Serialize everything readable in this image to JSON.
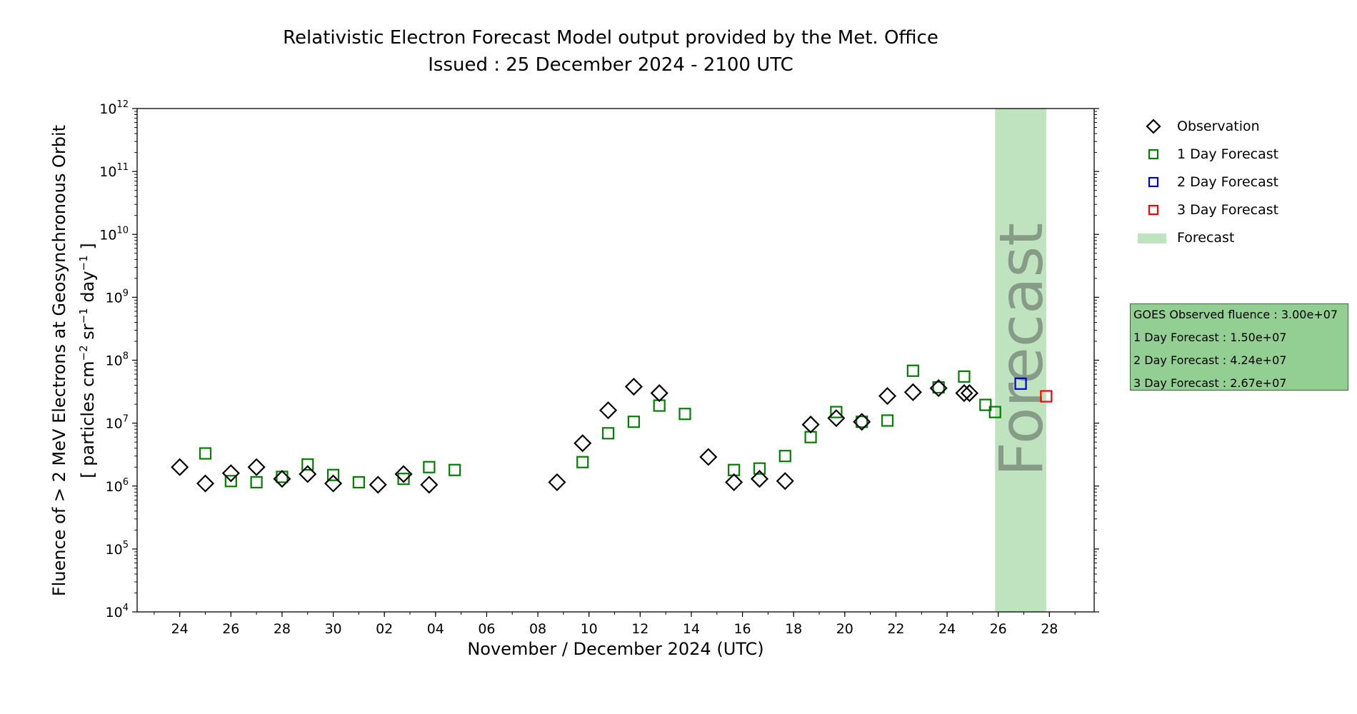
{
  "chart_data": {
    "type": "scatter",
    "title": "Relativistic Electron Forecast Model output provided by the Met. Office",
    "subtitle": "Issued : 25 December 2024 - 2100 UTC",
    "xlabel": "November / December 2024 (UTC)",
    "ylabel": "Fluence of > 2 MeV Electrons at Geosynchronous Orbit",
    "ylabel_units": "[ particles cm",
    "ylabel_units_parts": [
      "[ particles cm",
      "−2",
      " sr",
      "−1",
      " day",
      "−1",
      " ]"
    ],
    "x_range": [
      "2024-11-22T08:00",
      "2024-12-29T18:00"
    ],
    "ylim": [
      10000,
      1000000000000
    ],
    "yscale": "log",
    "x_ticks": [
      {
        "date": "2024-11-24",
        "label": "24"
      },
      {
        "date": "2024-11-26",
        "label": "26"
      },
      {
        "date": "2024-11-28",
        "label": "28"
      },
      {
        "date": "2024-11-30",
        "label": "30"
      },
      {
        "date": "2024-12-02",
        "label": "02"
      },
      {
        "date": "2024-12-04",
        "label": "04"
      },
      {
        "date": "2024-12-06",
        "label": "06"
      },
      {
        "date": "2024-12-08",
        "label": "08"
      },
      {
        "date": "2024-12-10",
        "label": "10"
      },
      {
        "date": "2024-12-12",
        "label": "12"
      },
      {
        "date": "2024-12-14",
        "label": "14"
      },
      {
        "date": "2024-12-16",
        "label": "16"
      },
      {
        "date": "2024-12-18",
        "label": "18"
      },
      {
        "date": "2024-12-20",
        "label": "20"
      },
      {
        "date": "2024-12-22",
        "label": "22"
      },
      {
        "date": "2024-12-24",
        "label": "24"
      },
      {
        "date": "2024-12-26",
        "label": "26"
      },
      {
        "date": "2024-12-28",
        "label": "28"
      }
    ],
    "y_ticks": [
      {
        "value": 10000,
        "base": "10",
        "exp": "4"
      },
      {
        "value": 100000,
        "base": "10",
        "exp": "5"
      },
      {
        "value": 1000000,
        "base": "10",
        "exp": "6"
      },
      {
        "value": 10000000,
        "base": "10",
        "exp": "7"
      },
      {
        "value": 100000000,
        "base": "10",
        "exp": "8"
      },
      {
        "value": 1000000000,
        "base": "10",
        "exp": "9"
      },
      {
        "value": 10000000000,
        "base": "10",
        "exp": "10"
      },
      {
        "value": 100000000000,
        "base": "10",
        "exp": "11"
      },
      {
        "value": 1000000000000,
        "base": "10",
        "exp": "12"
      }
    ],
    "forecast_region": {
      "start": "2024-12-25T21:00",
      "end": "2024-12-27T21:00",
      "label": "Forecast"
    },
    "series": [
      {
        "name": "Observation",
        "marker": "diamond",
        "color": "#000000",
        "points": [
          {
            "x": "2024-11-24T00:00",
            "y": 2000000
          },
          {
            "x": "2024-11-25T00:00",
            "y": 1100000
          },
          {
            "x": "2024-11-26T00:00",
            "y": 1600000
          },
          {
            "x": "2024-11-27T00:00",
            "y": 2000000
          },
          {
            "x": "2024-11-28T00:00",
            "y": 1300000
          },
          {
            "x": "2024-11-29T00:00",
            "y": 1550000
          },
          {
            "x": "2024-11-30T00:00",
            "y": 1100000
          },
          {
            "x": "2024-12-01T18:00",
            "y": 1050000
          },
          {
            "x": "2024-12-02T18:00",
            "y": 1550000
          },
          {
            "x": "2024-12-03T18:00",
            "y": 1050000
          },
          {
            "x": "2024-12-08T18:00",
            "y": 1150000
          },
          {
            "x": "2024-12-09T18:00",
            "y": 4800000
          },
          {
            "x": "2024-12-10T18:00",
            "y": 16000000
          },
          {
            "x": "2024-12-11T18:00",
            "y": 38000000
          },
          {
            "x": "2024-12-12T18:00",
            "y": 30000000
          },
          {
            "x": "2024-12-14T16:00",
            "y": 2900000
          },
          {
            "x": "2024-12-15T16:00",
            "y": 1150000
          },
          {
            "x": "2024-12-16T16:00",
            "y": 1300000
          },
          {
            "x": "2024-12-17T16:00",
            "y": 1200000
          },
          {
            "x": "2024-12-18T16:00",
            "y": 9500000
          },
          {
            "x": "2024-12-19T16:00",
            "y": 12000000
          },
          {
            "x": "2024-12-20T16:00",
            "y": 10500000
          },
          {
            "x": "2024-12-21T16:00",
            "y": 27000000
          },
          {
            "x": "2024-12-22T16:00",
            "y": 31000000
          },
          {
            "x": "2024-12-23T16:00",
            "y": 36000000
          },
          {
            "x": "2024-12-24T16:00",
            "y": 30000000
          },
          {
            "x": "2024-12-24T21:00",
            "y": 30000000
          }
        ]
      },
      {
        "name": "1 Day Forecast",
        "marker": "square",
        "color": "#007f00",
        "points": [
          {
            "x": "2024-11-25T00:00",
            "y": 3300000
          },
          {
            "x": "2024-11-26T00:00",
            "y": 1200000
          },
          {
            "x": "2024-11-27T00:00",
            "y": 1150000
          },
          {
            "x": "2024-11-28T00:00",
            "y": 1400000
          },
          {
            "x": "2024-11-29T00:00",
            "y": 2200000
          },
          {
            "x": "2024-11-30T00:00",
            "y": 1500000
          },
          {
            "x": "2024-12-01T00:00",
            "y": 1150000
          },
          {
            "x": "2024-12-02T18:00",
            "y": 1300000
          },
          {
            "x": "2024-12-03T18:00",
            "y": 2000000
          },
          {
            "x": "2024-12-04T18:00",
            "y": 1800000
          },
          {
            "x": "2024-12-09T18:00",
            "y": 2400000
          },
          {
            "x": "2024-12-10T18:00",
            "y": 6900000
          },
          {
            "x": "2024-12-11T18:00",
            "y": 10500000
          },
          {
            "x": "2024-12-12T18:00",
            "y": 19000000
          },
          {
            "x": "2024-12-13T18:00",
            "y": 14000000
          },
          {
            "x": "2024-12-15T16:00",
            "y": 1800000
          },
          {
            "x": "2024-12-16T16:00",
            "y": 1900000
          },
          {
            "x": "2024-12-17T16:00",
            "y": 3000000
          },
          {
            "x": "2024-12-18T16:00",
            "y": 6000000
          },
          {
            "x": "2024-12-19T16:00",
            "y": 15000000
          },
          {
            "x": "2024-12-20T16:00",
            "y": 10500000
          },
          {
            "x": "2024-12-21T16:00",
            "y": 11000000
          },
          {
            "x": "2024-12-22T16:00",
            "y": 68000000
          },
          {
            "x": "2024-12-23T16:00",
            "y": 37000000
          },
          {
            "x": "2024-12-24T16:00",
            "y": 55000000
          },
          {
            "x": "2024-12-25T12:00",
            "y": 19500000
          },
          {
            "x": "2024-12-25T21:00",
            "y": 15000000
          }
        ]
      },
      {
        "name": "2 Day Forecast",
        "marker": "square",
        "color": "#0000cc",
        "points": [
          {
            "x": "2024-12-26T21:00",
            "y": 42400000
          }
        ]
      },
      {
        "name": "3 Day Forecast",
        "marker": "square",
        "color": "#ff0000",
        "points": [
          {
            "x": "2024-12-27T21:00",
            "y": 26700000
          }
        ]
      }
    ],
    "legend": {
      "placement": "right",
      "entries": [
        {
          "label": "Observation",
          "marker": "diamond",
          "color": "#000000"
        },
        {
          "label": "1 Day Forecast",
          "marker": "square",
          "color": "#007f00"
        },
        {
          "label": "2 Day Forecast",
          "marker": "square",
          "color": "#0000cc"
        },
        {
          "label": "3 Day Forecast",
          "marker": "square",
          "color": "#ff0000"
        },
        {
          "label": "Forecast",
          "marker": "patch",
          "color": "#bfe3bf"
        }
      ]
    },
    "info_box": {
      "lines": [
        "GOES Observed fluence : 3.00e+07",
        "1 Day Forecast : 1.50e+07",
        "2 Day Forecast : 4.24e+07",
        "3 Day Forecast : 2.67e+07"
      ],
      "color": "#93cf93"
    },
    "grid": false
  }
}
